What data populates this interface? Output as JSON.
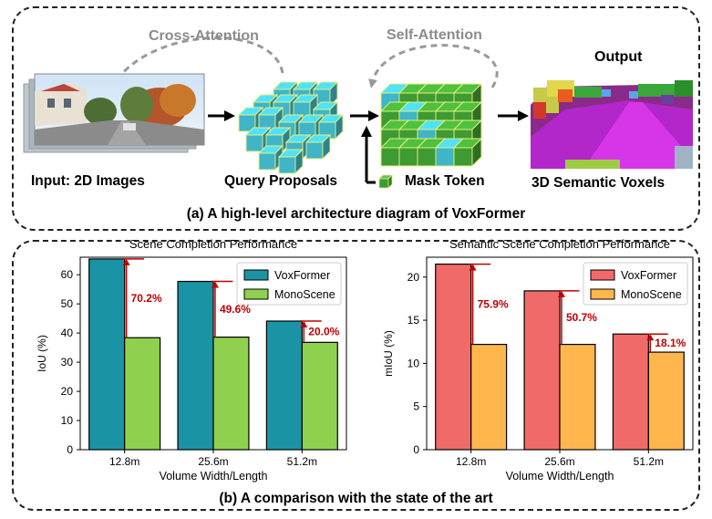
{
  "panel_a": {
    "caption": "(a) A high-level architecture diagram of VoxFormer",
    "stages": {
      "input": "Input: 2D Images",
      "query": "Query Proposals",
      "mask": "Mask Token",
      "output_label": "3D Semantic Voxels",
      "output_title": "Output"
    },
    "attention": {
      "cross": "Cross-Attention",
      "self": "Self-Attention"
    }
  },
  "panel_b": {
    "caption": "(b) A comparison with the state of the art"
  },
  "colors": {
    "voxformer_scene": "#1a94a5",
    "monoscene_scene": "#8fd14f",
    "voxformer_semantic": "#f06a6a",
    "monoscene_semantic": "#ffb74d",
    "annotation_red": "#c00000",
    "query_cube": "#3fb5c7",
    "self_cube": "#3e9a32"
  },
  "chart_data": [
    {
      "type": "bar",
      "title": "Scene Completion Performance",
      "xlabel": "Volume Width/Length",
      "ylabel": "IoU (%)",
      "categories": [
        "12.8m",
        "25.6m",
        "51.2m"
      ],
      "ylim": [
        0,
        66
      ],
      "yticks": [
        0,
        10,
        20,
        30,
        40,
        50,
        60
      ],
      "legend_position": "top-right",
      "series": [
        {
          "name": "VoxFormer",
          "values": [
            65.4,
            57.7,
            44.1
          ],
          "color": "#1a94a5"
        },
        {
          "name": "MonoScene",
          "values": [
            38.4,
            38.6,
            36.8
          ],
          "color": "#8fd14f"
        }
      ],
      "annotations": [
        "70.2%",
        "49.6%",
        "20.0%"
      ]
    },
    {
      "type": "bar",
      "title": "Semantic Scene Completion Performance",
      "xlabel": "Volume Width/Length",
      "ylabel": "mIoU (%)",
      "categories": [
        "12.8m",
        "25.6m",
        "51.2m"
      ],
      "ylim": [
        0,
        22.3
      ],
      "yticks": [
        0,
        5,
        10,
        15,
        20
      ],
      "legend_position": "top-right",
      "series": [
        {
          "name": "VoxFormer",
          "values": [
            21.5,
            18.4,
            13.4
          ],
          "color": "#f06a6a"
        },
        {
          "name": "MonoScene",
          "values": [
            12.2,
            12.2,
            11.3
          ],
          "color": "#ffb74d"
        }
      ],
      "annotations": [
        "75.9%",
        "50.7%",
        "18.1%"
      ]
    }
  ]
}
